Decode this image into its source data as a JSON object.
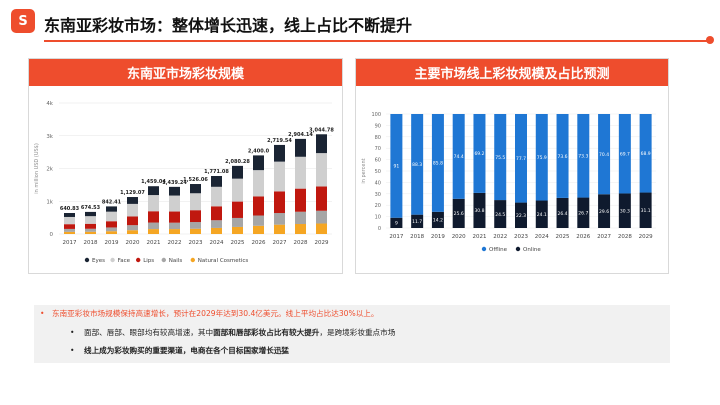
{
  "header": {
    "logo_text": "S",
    "title": "东南亚彩妆市场：整体增长迅速，线上占比不断提升"
  },
  "left_panel": {
    "title": "东南亚市场彩妆规模"
  },
  "right_panel": {
    "title": "主要市场线上彩妆规模及占比预测"
  },
  "notes": {
    "bullet1": "东南亚彩妆市场规模保持高速增长，预计在2029年达到30.4亿美元。线上平均占比达30%以上。",
    "bullet2_pre": "面部、唇部、眼部均有较高增速，其中",
    "bullet2_bold": "面部和唇部彩妆占比有较大提升",
    "bullet2_post": "，是跨境彩妆重点市场",
    "bullet3": "线上成为彩妆购买的重要渠道，电商在各个目标国家增长迅猛"
  },
  "chart_data": [
    {
      "type": "bar",
      "stacked": true,
      "title": "东南亚市场彩妆规模",
      "ylabel": "in million USD (US$)",
      "ylim": [
        0,
        4000
      ],
      "yticks": [
        "0",
        "1k",
        "2k",
        "3k",
        "4k"
      ],
      "grid": true,
      "legend_position": "bottom",
      "categories": [
        "2017",
        "2018",
        "2019",
        "2020",
        "2021",
        "2022",
        "2023",
        "2024",
        "2025",
        "2026",
        "2027",
        "2028",
        "2029"
      ],
      "totals": [
        640.83,
        674.53,
        842.41,
        1129.07,
        1459.04,
        1439.24,
        1526.06,
        1771.08,
        2080.28,
        2400.0,
        2719.54,
        2904.14,
        3044.78
      ],
      "total_labels": [
        "640.83",
        "674.53",
        "842.41",
        "1,129.07",
        "1,459.04",
        "1,439.24",
        "1,526.06",
        "1,771.08",
        "2,080.28",
        "2,400.0",
        "2,719.54",
        "2,904.14",
        "3,044.78"
      ],
      "series": [
        {
          "name": "Natural Cosmetics",
          "color": "#f5a623",
          "values": [
            65,
            68,
            85,
            115,
            150,
            150,
            160,
            185,
            215,
            250,
            285,
            305,
            320
          ]
        },
        {
          "name": "Nails",
          "color": "#a6a6a6",
          "values": [
            90,
            92,
            115,
            155,
            200,
            196,
            205,
            235,
            275,
            315,
            355,
            375,
            390
          ]
        },
        {
          "name": "Lips",
          "color": "#c0180f",
          "values": [
            145,
            152,
            190,
            265,
            345,
            340,
            362,
            425,
            500,
            580,
            660,
            705,
            740
          ]
        },
        {
          "name": "Face",
          "color": "#cfcfcf",
          "values": [
            220,
            233,
            292,
            384,
            494,
            488,
            517,
            596,
            700,
            805,
            910,
            973,
            1020
          ]
        },
        {
          "name": "Eyes",
          "color": "#1a2433",
          "values": [
            120.83,
            129.53,
            160.41,
            210.07,
            270.04,
            265.24,
            282.06,
            330.08,
            390.28,
            450.0,
            509.54,
            546.14,
            574.78
          ]
        }
      ]
    },
    {
      "type": "bar",
      "stacked": true,
      "title": "主要市场线上彩妆规模及占比预测",
      "ylabel": "in percent",
      "ylim": [
        0,
        100
      ],
      "yticks": [
        "0",
        "10",
        "20",
        "30",
        "40",
        "50",
        "60",
        "70",
        "80",
        "90",
        "100"
      ],
      "grid": true,
      "legend_position": "bottom",
      "categories": [
        "2017",
        "2018",
        "2019",
        "2020",
        "2021",
        "2022",
        "2023",
        "2024",
        "2025",
        "2026",
        "2027",
        "2028",
        "2029"
      ],
      "series": [
        {
          "name": "Online",
          "color": "#0f1a2e",
          "values": [
            9,
            11.7,
            14.2,
            25.6,
            30.8,
            24.5,
            22.3,
            24.1,
            26.4,
            26.7,
            29.6,
            30.3,
            31.1
          ],
          "labels": [
            "9",
            "11.7",
            "14.2",
            "25.6",
            "30.8",
            "24.5",
            "22.3",
            "24.1",
            "26.4",
            "26.7",
            "29.6",
            "30.3",
            "31.1"
          ]
        },
        {
          "name": "Offline",
          "color": "#1f77d4",
          "values": [
            91,
            88.3,
            85.8,
            74.4,
            69.2,
            75.5,
            77.7,
            75.9,
            73.6,
            73.3,
            70.4,
            69.7,
            68.9
          ],
          "labels": [
            "91",
            "88.3",
            "85.8",
            "74.4",
            "69.2",
            "75.5",
            "77.7",
            "75.9",
            "73.6",
            "73.3",
            "70.4",
            "69.7",
            "68.9"
          ]
        }
      ]
    }
  ]
}
